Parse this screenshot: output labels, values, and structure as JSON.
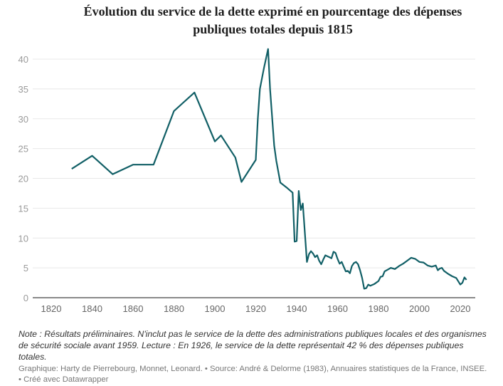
{
  "title": {
    "line1": "Évolution du service de la dette exprimé en pourcentage des dépenses",
    "line2": "publiques totales depuis 1815"
  },
  "chart_data": {
    "type": "line",
    "title": "Évolution du service de la dette exprimé en pourcentage des dépenses publiques totales depuis 1815",
    "xlabel": "",
    "ylabel": "",
    "xlim": [
      1810,
      2025
    ],
    "ylim": [
      0,
      42
    ],
    "grid": true,
    "line_color": "#115f66",
    "x_ticks": [
      "1820",
      "1840",
      "1860",
      "1880",
      "1900",
      "1920",
      "1940",
      "1960",
      "1980",
      "2000",
      "2020"
    ],
    "y_ticks": [
      "0",
      "5",
      "10",
      "15",
      "20",
      "25",
      "30",
      "35",
      "40"
    ],
    "series": [
      {
        "x": [
          1830,
          1840,
          1850,
          1860,
          1870,
          1880,
          1890,
          1900,
          1903,
          1910,
          1913,
          1920,
          1921,
          1922,
          1924,
          1926,
          1927,
          1929,
          1930,
          1932,
          1935,
          1938,
          1939,
          1940,
          1941,
          1942,
          1943,
          1945,
          1946,
          1947,
          1948,
          1949,
          1950,
          1951,
          1952,
          1953,
          1954,
          1956,
          1957,
          1958,
          1959,
          1960,
          1961,
          1962,
          1963,
          1964,
          1965,
          1966,
          1967,
          1968,
          1969,
          1970,
          1971,
          1972,
          1973,
          1974,
          1975,
          1976,
          1978,
          1980,
          1981,
          1982,
          1983,
          1985,
          1986,
          1988,
          1990,
          1992,
          1994,
          1996,
          1998,
          2000,
          2002,
          2004,
          2006,
          2008,
          2009,
          2010,
          2011,
          2012,
          2014,
          2016,
          2018,
          2020,
          2021,
          2022,
          2023
        ],
        "y": [
          21.6,
          23.8,
          20.7,
          22.3,
          22.3,
          31.3,
          34.4,
          26.2,
          27.2,
          23.5,
          19.4,
          23.1,
          30,
          35,
          38.5,
          41.7,
          35,
          25.5,
          23,
          19.3,
          18.5,
          17.6,
          9.4,
          9.5,
          17.9,
          14.7,
          15.8,
          6.0,
          7.3,
          7.8,
          7.4,
          6.8,
          7.1,
          6.2,
          5.6,
          6.4,
          7.1,
          6.8,
          6.6,
          7.7,
          7.5,
          6.5,
          5.7,
          6.0,
          5.2,
          4.4,
          4.5,
          4.1,
          5.3,
          5.8,
          6.0,
          5.6,
          4.6,
          3.3,
          1.5,
          1.6,
          2.2,
          2.0,
          2.3,
          2.8,
          3.5,
          3.6,
          4.4,
          4.8,
          5.0,
          4.8,
          5.3,
          5.7,
          6.2,
          6.7,
          6.5,
          6.0,
          5.9,
          5.4,
          5.2,
          5.4,
          4.6,
          4.9,
          5.0,
          4.5,
          4.0,
          3.6,
          3.3,
          2.2,
          2.5,
          3.4,
          3.0
        ]
      }
    ]
  },
  "note": "Note : Résultats préliminaires. N'inclut pas le service de la dette des administrations publiques locales et des organismes de sécurité sociale avant 1959. Lecture : En 1926, le service de la dette représentait 42 % des dépenses publiques totales.",
  "source": "Graphique: Harty de Pierrebourg, Monnet, Leonard. • Source: André & Delorme (1983), Annuaires statistiques de la France, INSEE. • Créé avec Datawrapper"
}
